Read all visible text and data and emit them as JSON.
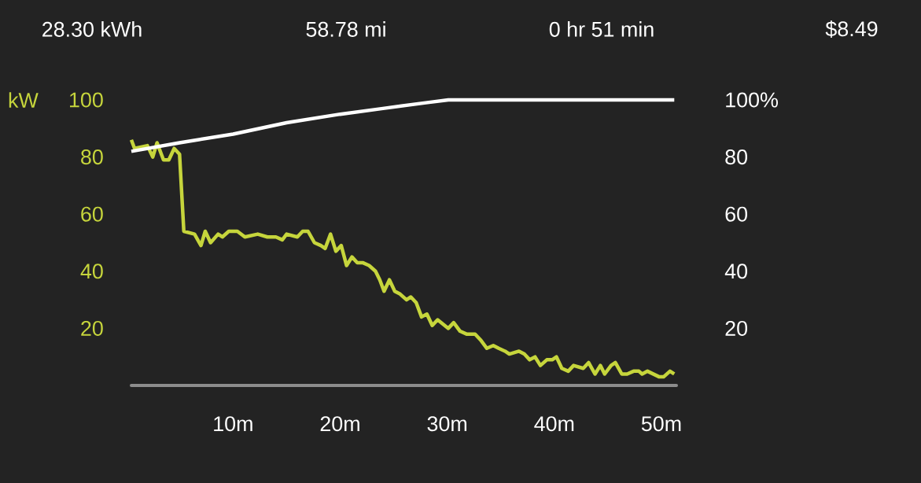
{
  "chart_data": {
    "type": "line",
    "ylabel": "kW",
    "annotations": [
      "28.30 kWh",
      "58.78 mi",
      "0 hr 51 min",
      "$8.49"
    ],
    "xlim": [
      0.5,
      51.4
    ],
    "xticks": [
      {
        "value": 10,
        "label": "10m"
      },
      {
        "value": 20,
        "label": "20m"
      },
      {
        "value": 30,
        "label": "30m"
      },
      {
        "value": 40,
        "label": "40m"
      },
      {
        "value": 50,
        "label": "50m"
      }
    ],
    "ylim": [
      0,
      100
    ],
    "yticks": [
      20,
      40,
      60,
      80,
      100
    ],
    "y2lim": [
      0,
      100
    ],
    "y2ticks": [
      20,
      40,
      60,
      80,
      {
        "value": 100,
        "label": "100%"
      }
    ],
    "series": [
      {
        "color": "#c6d53c",
        "x": [
          0.5,
          0.8,
          2.0,
          2.5,
          2.9,
          3.5,
          4.0,
          4.5,
          5.0,
          5.4,
          6.4,
          7.0,
          7.4,
          7.9,
          8.6,
          9.0,
          9.6,
          10.4,
          11.1,
          12.3,
          13.2,
          14.0,
          14.6,
          15.0,
          16.0,
          16.5,
          17.0,
          17.6,
          18.2,
          18.6,
          19.1,
          19.6,
          20.1,
          20.6,
          21.1,
          21.6,
          22.1,
          22.7,
          23.3,
          23.7,
          24.1,
          24.6,
          25.1,
          25.6,
          26.2,
          26.6,
          27.1,
          27.6,
          28.1,
          28.6,
          29.1,
          30.1,
          30.6,
          31.2,
          31.8,
          32.6,
          33.1,
          33.7,
          34.3,
          34.8,
          35.4,
          35.8,
          36.7,
          37.2,
          37.7,
          38.2,
          38.7,
          39.3,
          39.8,
          40.2,
          40.7,
          41.3,
          41.8,
          42.7,
          43.2,
          43.8,
          44.3,
          44.7,
          45.3,
          45.7,
          46.3,
          46.8,
          47.4,
          47.9,
          48.2,
          48.7,
          49.8,
          50.2,
          50.8,
          51.2
        ],
        "values": [
          86,
          83,
          84,
          80,
          85,
          79,
          79,
          83,
          81,
          54,
          53,
          49,
          54,
          50,
          53,
          52,
          54,
          54,
          52,
          53,
          52,
          52,
          51,
          53,
          52,
          54,
          54,
          50,
          49,
          48,
          53,
          47,
          49,
          42,
          45,
          43,
          43,
          42,
          40,
          37,
          33,
          37,
          33,
          32,
          30,
          31,
          29,
          24,
          25,
          21,
          23,
          20,
          22,
          19,
          18,
          18,
          16,
          13,
          14,
          13,
          12,
          11,
          12,
          11,
          9,
          10,
          7,
          9,
          9,
          10,
          6,
          5,
          7,
          6,
          8,
          4,
          7,
          4,
          7,
          8,
          4,
          4,
          5,
          5,
          4,
          5,
          3,
          3,
          5,
          4
        ]
      },
      {
        "color": "#ffffff",
        "axis": "y2",
        "x": [
          0.5,
          5,
          10,
          15,
          20,
          24,
          28,
          30.1,
          51.2
        ],
        "values": [
          82,
          85,
          88,
          92,
          95,
          97,
          99,
          100,
          100
        ]
      }
    ]
  }
}
